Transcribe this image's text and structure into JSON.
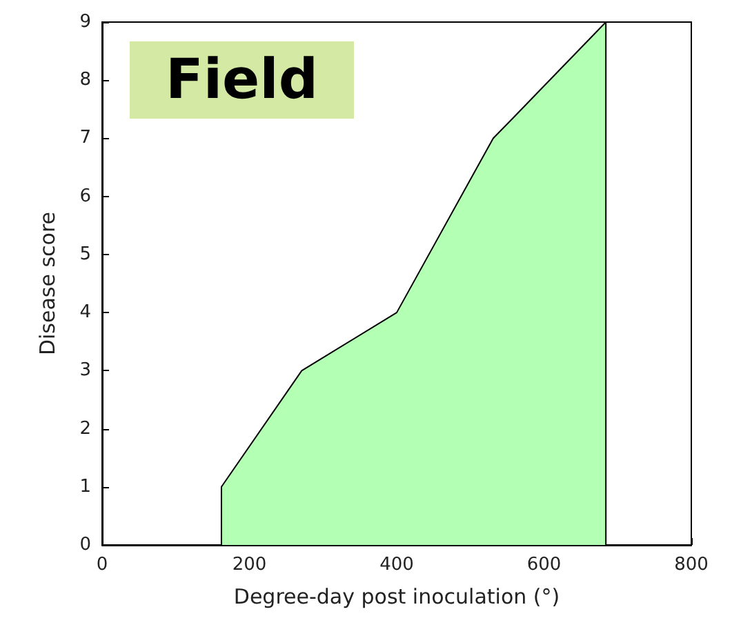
{
  "chart_data": {
    "type": "area",
    "title": "Field",
    "xlabel": "Degree-day post inoculation (°)",
    "ylabel": "Disease score",
    "x": [
      162,
      162,
      271,
      400,
      531,
      558,
      684,
      684
    ],
    "series": [
      {
        "color": "#b3ffb3",
        "values": [
          0,
          1,
          3,
          4,
          7,
          7.35,
          9,
          0
        ]
      }
    ],
    "xlim": [
      0,
      800
    ],
    "xticks": [
      0,
      200,
      400,
      600,
      800
    ],
    "ylim": [
      0,
      9
    ],
    "yticks": [
      0,
      1,
      2,
      3,
      4,
      5,
      6,
      7,
      8,
      9
    ],
    "grid": false
  }
}
